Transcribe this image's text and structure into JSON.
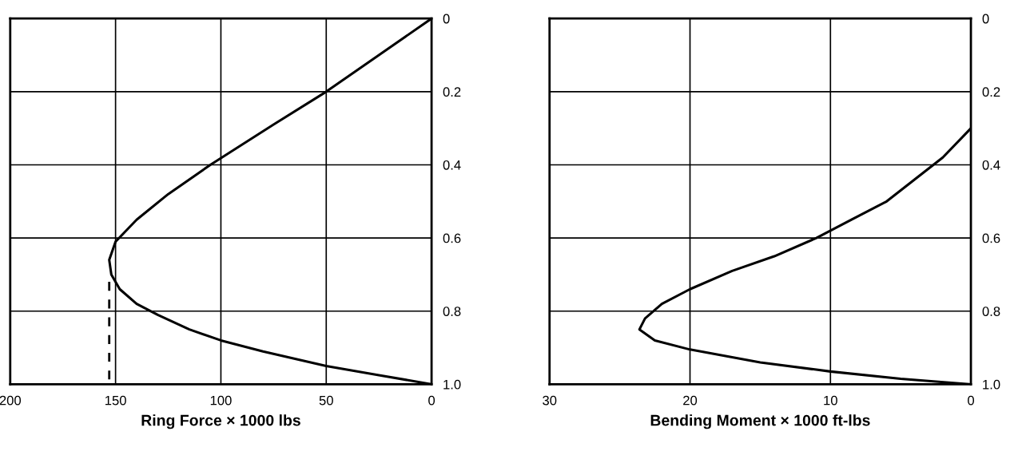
{
  "chart_data": [
    {
      "type": "line",
      "xlabel": "Ring Force × 1000 lbs",
      "xlim": [
        200,
        0
      ],
      "xticks": [
        200,
        150,
        100,
        50,
        0
      ],
      "ylim": [
        1.0,
        0
      ],
      "yticks": [
        0,
        0.2,
        0.4,
        0.6,
        0.8,
        {
          "value": 1.0,
          "label": "1.0"
        }
      ],
      "grid": true,
      "series": [
        {
          "color": "#000000",
          "line_style": "solid",
          "x": [
            0,
            25,
            50,
            75,
            105,
            125,
            140,
            150,
            153,
            152,
            148,
            140,
            130,
            115,
            100,
            80,
            50,
            25,
            0
          ],
          "values": [
            0,
            0.1,
            0.2,
            0.29,
            0.4,
            0.48,
            0.55,
            0.61,
            0.66,
            0.7,
            0.74,
            0.78,
            0.81,
            0.85,
            0.88,
            0.91,
            0.95,
            0.975,
            1.0
          ]
        },
        {
          "color": "#000000",
          "line_style": "dashed",
          "x": [
            153,
            153
          ],
          "values": [
            0.72,
            0.99
          ]
        }
      ]
    },
    {
      "type": "line",
      "xlabel": "Bending Moment × 1000 ft-lbs",
      "xlim": [
        30,
        0
      ],
      "xticks": [
        30,
        20,
        10,
        0
      ],
      "ylim": [
        1.0,
        0
      ],
      "yticks": [
        0,
        0.2,
        0.4,
        0.6,
        0.8,
        {
          "value": 1.0,
          "label": "1.0"
        }
      ],
      "grid": true,
      "series": [
        {
          "color": "#000000",
          "line_style": "solid",
          "x": [
            0,
            2,
            4,
            6,
            8.5,
            11,
            14,
            17,
            20,
            22,
            23.2,
            23.6,
            22.5,
            20,
            15,
            10,
            5,
            0
          ],
          "values": [
            0.3,
            0.38,
            0.44,
            0.5,
            0.55,
            0.6,
            0.65,
            0.69,
            0.74,
            0.78,
            0.82,
            0.85,
            0.88,
            0.905,
            0.94,
            0.965,
            0.985,
            1.0
          ]
        }
      ]
    }
  ]
}
